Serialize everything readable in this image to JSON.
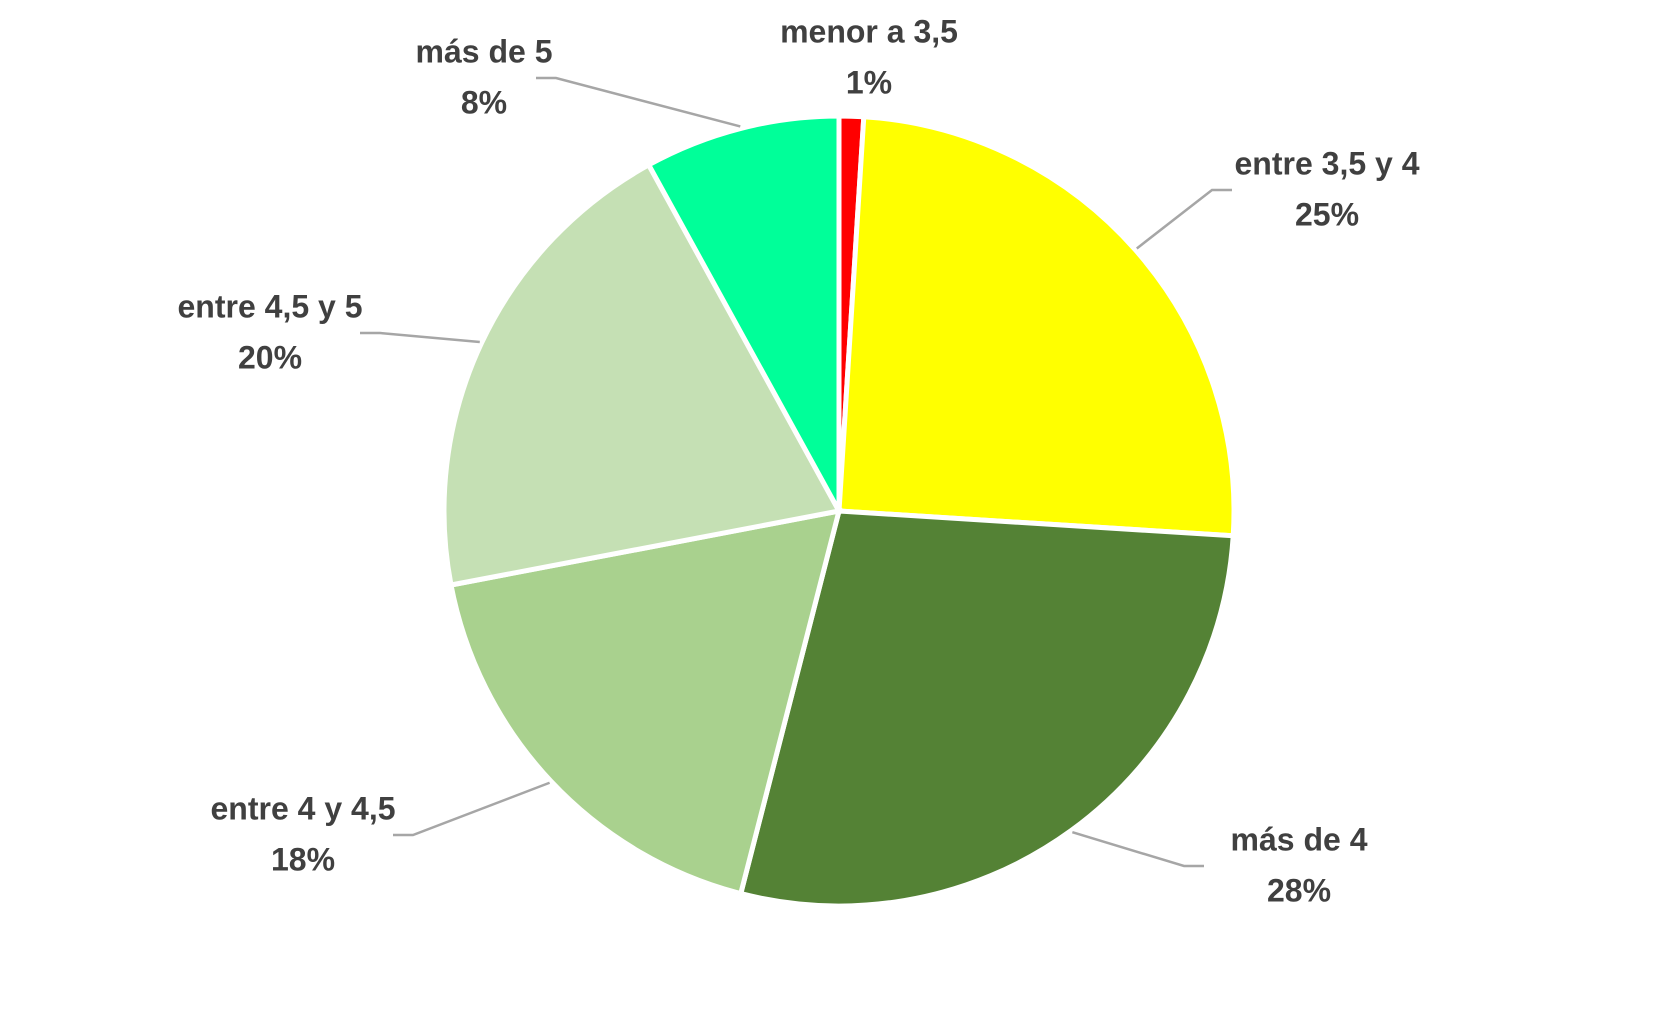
{
  "chart_data": {
    "type": "pie",
    "categories": [
      "menor a 3,5",
      "entre 3,5 y 4",
      "más de 4",
      "entre 4 y 4,5",
      "entre 4,5 y 5",
      "más de 5"
    ],
    "values": [
      1,
      25,
      28,
      18,
      20,
      8
    ],
    "value_labels": [
      "1%",
      "25%",
      "28%",
      "18%",
      "20%",
      "8%"
    ],
    "colors": [
      "#ff0000",
      "#ffff00",
      "#548235",
      "#a9d18e",
      "#c5e0b4",
      "#00ff99"
    ]
  }
}
